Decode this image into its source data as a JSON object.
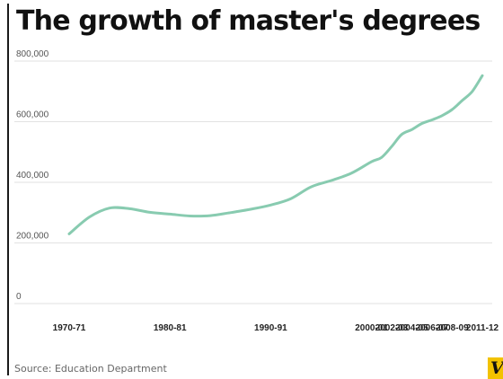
{
  "title": "The growth of master's degrees",
  "source": "Source: Education Department",
  "brand": {
    "mark": "V",
    "color": "#f2c200"
  },
  "colors": {
    "line": "#88cbb0",
    "grid": "#e2e2e2",
    "title": "#111111"
  },
  "chart_data": {
    "type": "line",
    "title": "The growth of master's degrees",
    "xlabel": "",
    "ylabel": "",
    "ylim": [
      0,
      800000
    ],
    "y_ticks": [
      {
        "value": 0,
        "label": "0"
      },
      {
        "value": 200000,
        "label": "200,000"
      },
      {
        "value": 400000,
        "label": "400,000"
      },
      {
        "value": 600000,
        "label": "600,000"
      },
      {
        "value": 800000,
        "label": "800,000"
      }
    ],
    "x_range": [
      1970,
      2011
    ],
    "x_ticks": [
      {
        "x": 1970,
        "label": "1970-71"
      },
      {
        "x": 1980,
        "label": "1980-81"
      },
      {
        "x": 1990,
        "label": "1990-91"
      },
      {
        "x": 2000,
        "label": "2000-01"
      },
      {
        "x": 2002,
        "label": "2002-03"
      },
      {
        "x": 2004,
        "label": "2004-05"
      },
      {
        "x": 2006,
        "label": "2006-07"
      },
      {
        "x": 2008,
        "label": "2008-09"
      },
      {
        "x": 2011,
        "label": "2011-12"
      }
    ],
    "grid": true,
    "legend": "none",
    "series": [
      {
        "color": "#88cbb0",
        "points": [
          {
            "x": 1970,
            "y": 230000
          },
          {
            "x": 1972,
            "y": 285000
          },
          {
            "x": 1974,
            "y": 315000
          },
          {
            "x": 1976,
            "y": 313000
          },
          {
            "x": 1978,
            "y": 301000
          },
          {
            "x": 1980,
            "y": 295000
          },
          {
            "x": 1982,
            "y": 289000
          },
          {
            "x": 1984,
            "y": 290000
          },
          {
            "x": 1986,
            "y": 300000
          },
          {
            "x": 1988,
            "y": 311000
          },
          {
            "x": 1990,
            "y": 325000
          },
          {
            "x": 1992,
            "y": 346000
          },
          {
            "x": 1994,
            "y": 385000
          },
          {
            "x": 1996,
            "y": 406000
          },
          {
            "x": 1998,
            "y": 430000
          },
          {
            "x": 2000,
            "y": 468000
          },
          {
            "x": 2001,
            "y": 482000
          },
          {
            "x": 2002,
            "y": 518000
          },
          {
            "x": 2003,
            "y": 558000
          },
          {
            "x": 2004,
            "y": 574000
          },
          {
            "x": 2005,
            "y": 594000
          },
          {
            "x": 2006,
            "y": 606000
          },
          {
            "x": 2007,
            "y": 620000
          },
          {
            "x": 2008,
            "y": 640000
          },
          {
            "x": 2009,
            "y": 670000
          },
          {
            "x": 2010,
            "y": 700000
          },
          {
            "x": 2011,
            "y": 752000
          }
        ]
      }
    ]
  }
}
